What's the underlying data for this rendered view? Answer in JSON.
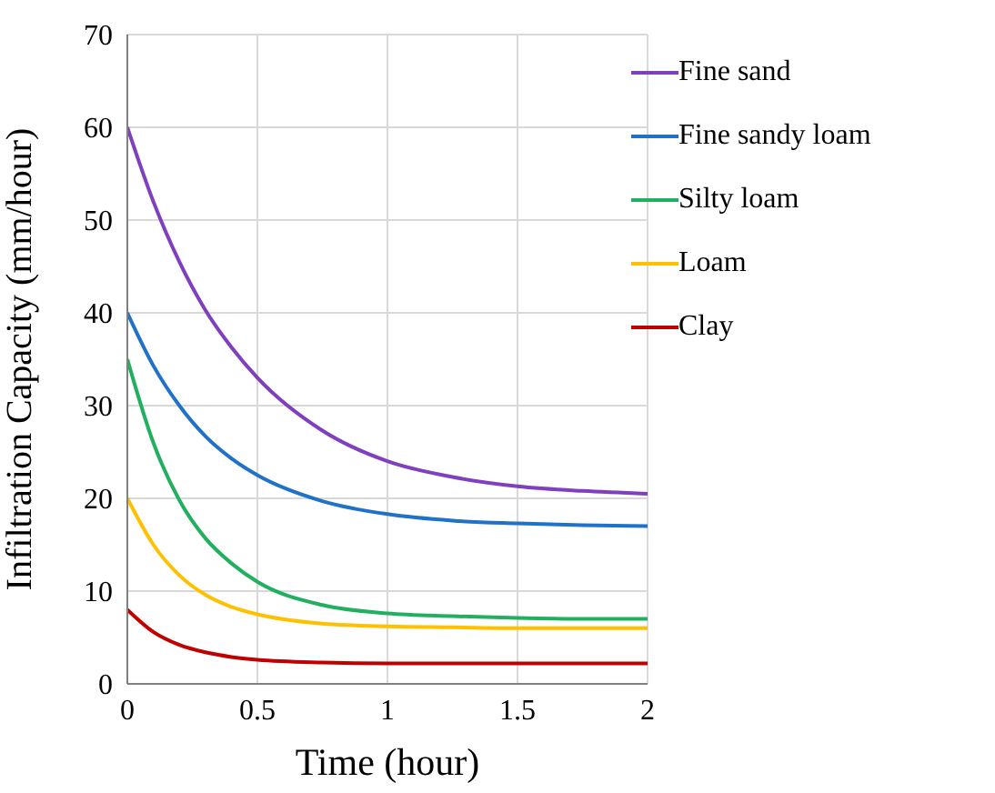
{
  "chart_data": {
    "type": "line",
    "xlabel": "Time (hour)",
    "ylabel": "Infiltration Capacity (mm/hour)",
    "x": [
      0,
      0.1,
      0.2,
      0.3,
      0.4,
      0.5,
      0.75,
      1,
      1.25,
      1.5,
      1.75,
      2
    ],
    "series": [
      {
        "name": "Fine sand",
        "color": "#7f3fbf",
        "values": [
          60,
          52,
          45.5,
          40.3,
          36.3,
          33,
          27.3,
          24,
          22.3,
          21.3,
          20.8,
          20.5
        ]
      },
      {
        "name": "Fine sandy loam",
        "color": "#1f72c8",
        "values": [
          40,
          34.3,
          30,
          26.7,
          24.3,
          22.5,
          19.7,
          18.3,
          17.6,
          17.3,
          17.1,
          17
        ]
      },
      {
        "name": "Silty loam",
        "color": "#20b060",
        "values": [
          35,
          26,
          19.8,
          15.7,
          13,
          11,
          8.5,
          7.6,
          7.3,
          7.1,
          7,
          7
        ]
      },
      {
        "name": "Loam",
        "color": "#ffc000",
        "values": [
          20,
          15,
          11.7,
          9.6,
          8.3,
          7.5,
          6.5,
          6.2,
          6.1,
          6,
          6,
          6
        ]
      },
      {
        "name": "Clay",
        "color": "#c00000",
        "values": [
          8,
          5.6,
          4.2,
          3.4,
          2.9,
          2.6,
          2.3,
          2.2,
          2.2,
          2.2,
          2.2,
          2.2
        ]
      }
    ],
    "xlim": [
      0,
      2
    ],
    "xticks": [
      0,
      0.5,
      1,
      1.5,
      2
    ],
    "ylim": [
      0,
      70
    ],
    "yticks": [
      0,
      10,
      20,
      30,
      40,
      50,
      60,
      70
    ],
    "grid": true,
    "legend": "top right",
    "marker": "none",
    "line_style": "solid"
  }
}
